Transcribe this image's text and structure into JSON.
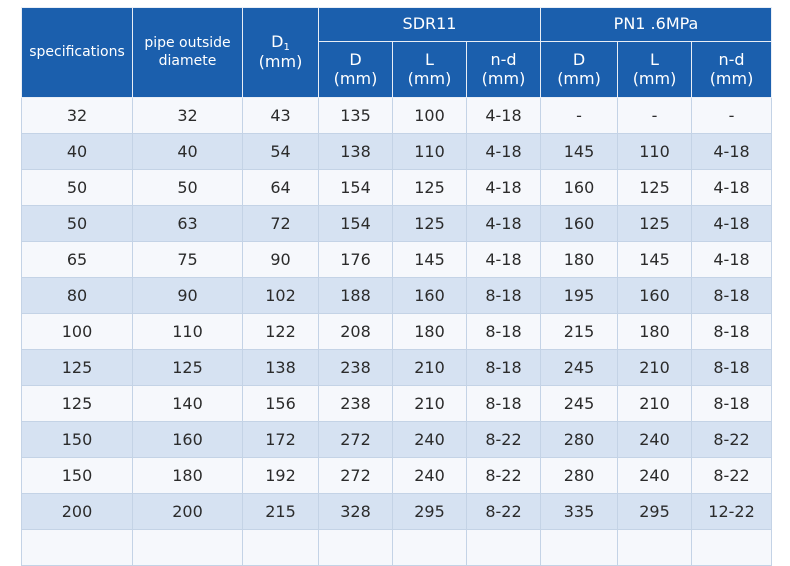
{
  "header": {
    "specifications": "specifications",
    "pipe_outside": "pipe outside",
    "pipe_diameter": "diamete",
    "d1_main": "D",
    "d1_sub": "1",
    "d1_unit": "(mm)",
    "group_sdr": "SDR11",
    "group_pn": "PN1 .6MPa",
    "sdr_cols": [
      {
        "label": "D",
        "unit": "(mm)"
      },
      {
        "label": "L",
        "unit": "(mm)"
      },
      {
        "label": "n-d",
        "unit": "(mm)"
      }
    ],
    "pn_cols": [
      {
        "label": "D",
        "unit": "(mm)"
      },
      {
        "label": "L",
        "unit": "(mm)"
      },
      {
        "label": "n-d",
        "unit": "(mm)"
      }
    ]
  },
  "rows": [
    [
      "32",
      "32",
      "43",
      "135",
      "100",
      "4-18",
      "-",
      "-",
      "-"
    ],
    [
      "40",
      "40",
      "54",
      "138",
      "110",
      "4-18",
      "145",
      "110",
      "4-18"
    ],
    [
      "50",
      "50",
      "64",
      "154",
      "125",
      "4-18",
      "160",
      "125",
      "4-18"
    ],
    [
      "50",
      "63",
      "72",
      "154",
      "125",
      "4-18",
      "160",
      "125",
      "4-18"
    ],
    [
      "65",
      "75",
      "90",
      "176",
      "145",
      "4-18",
      "180",
      "145",
      "4-18"
    ],
    [
      "80",
      "90",
      "102",
      "188",
      "160",
      "8-18",
      "195",
      "160",
      "8-18"
    ],
    [
      "100",
      "110",
      "122",
      "208",
      "180",
      "8-18",
      "215",
      "180",
      "8-18"
    ],
    [
      "125",
      "125",
      "138",
      "238",
      "210",
      "8-18",
      "245",
      "210",
      "8-18"
    ],
    [
      "125",
      "140",
      "156",
      "238",
      "210",
      "8-18",
      "245",
      "210",
      "8-18"
    ],
    [
      "150",
      "160",
      "172",
      "272",
      "240",
      "8-22",
      "280",
      "240",
      "8-22"
    ],
    [
      "150",
      "180",
      "192",
      "272",
      "240",
      "8-22",
      "280",
      "240",
      "8-22"
    ],
    [
      "200",
      "200",
      "215",
      "328",
      "295",
      "8-22",
      "335",
      "295",
      "12-22"
    ],
    [
      "",
      "",
      "",
      "",
      "",
      "",
      "",
      "",
      ""
    ]
  ]
}
